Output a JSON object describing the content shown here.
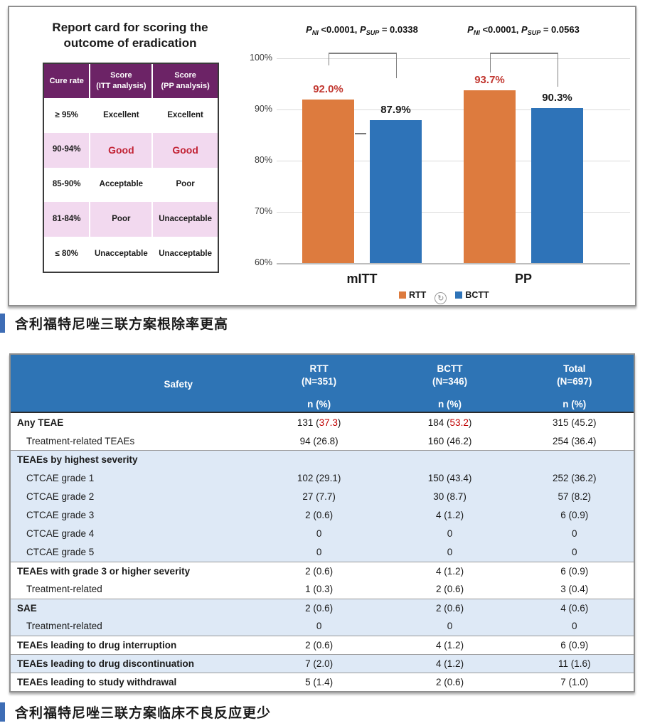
{
  "report_card": {
    "title_line1": "Report card for scoring the",
    "title_line2": "outcome of eradication",
    "header": [
      {
        "l1": "Cure rate",
        "l2": ""
      },
      {
        "l1": "Score",
        "l2": "(ITT analysis)"
      },
      {
        "l1": "Score",
        "l2": "(PP analysis)"
      }
    ],
    "rows": [
      {
        "rate": "≥ 95%",
        "itt": "Excellent",
        "pp": "Excellent",
        "shade": "white",
        "red": false
      },
      {
        "rate": "90-94%",
        "itt": "Good",
        "pp": "Good",
        "shade": "pink",
        "red": true
      },
      {
        "rate": "85-90%",
        "itt": "Acceptable",
        "pp": "Poor",
        "shade": "white",
        "red": false
      },
      {
        "rate": "81-84%",
        "itt": "Poor",
        "pp": "Unacceptable",
        "shade": "pink",
        "red": false
      },
      {
        "rate": "≤ 80%",
        "itt": "Unacceptable",
        "pp": "Unacceptable",
        "shade": "white",
        "red": false
      }
    ],
    "colors": {
      "header_bg": "#6C2366",
      "pink_row": "#F2D9EF",
      "good_red": "#C22335"
    }
  },
  "chart_data": {
    "type": "bar",
    "title": "",
    "categories": [
      "mITT",
      "PP"
    ],
    "series": [
      {
        "name": "RTT",
        "color": "#DD7B3E",
        "values": [
          92.0,
          93.7
        ],
        "value_labels": [
          "92.0%",
          "93.7%"
        ],
        "label_color": "#C23831"
      },
      {
        "name": "BCTT",
        "color": "#2E73B8",
        "values": [
          87.9,
          90.3
        ],
        "value_labels": [
          "87.9%",
          "90.3%"
        ],
        "label_color": "#1a1a1a"
      }
    ],
    "ylim": [
      60,
      100
    ],
    "yticks": [
      {
        "label": "100%",
        "value": 100
      },
      {
        "label": "90%",
        "value": 90
      },
      {
        "label": "80%",
        "value": 80
      },
      {
        "label": "70%",
        "value": 70
      },
      {
        "label": "60%",
        "value": 60
      }
    ],
    "grid": true,
    "legend_position": "bottom",
    "refresh_icon_glyph": "↻",
    "annotations": [
      {
        "p": "P",
        "sub1": "NI",
        "v1": "<0.0001,",
        "sub2": "SUP",
        "v2": "= 0.0338"
      },
      {
        "p": "P",
        "sub1": "NI",
        "v1": "<0.0001,",
        "sub2": "SUP",
        "v2": "= 0.0563"
      }
    ]
  },
  "caption_top": {
    "text": "含利福特尼唑三联方案根除率更高",
    "bar_color": "#3E6DB5"
  },
  "caption_bottom": {
    "text": "含利福特尼唑三联方案临床不良反应更少",
    "bar_color": "#3E6DB5"
  },
  "safety_table": {
    "colors": {
      "header_bg": "#2E74B5",
      "zebra": "#DEE9F6",
      "highlight_red": "#C00000"
    },
    "header": {
      "title": "Safety",
      "cols": [
        {
          "name": "RTT",
          "n": "(N=351)"
        },
        {
          "name": "BCTT",
          "n": "(N=346)"
        },
        {
          "name": "Total",
          "n": "(N=697)"
        }
      ],
      "sub": "n (%)"
    },
    "rows": [
      {
        "label": "Any TEAE",
        "bold": true,
        "indent": false,
        "shade": "white",
        "section_start": false,
        "cells": [
          {
            "n": "131",
            "pct": "37.3",
            "red": true
          },
          {
            "n": "184",
            "pct": "53.2",
            "red": true
          },
          {
            "n": "315",
            "pct": "45.2"
          }
        ]
      },
      {
        "label": "Treatment-related TEAEs",
        "bold": false,
        "indent": true,
        "shade": "white",
        "section_start": false,
        "cells": [
          {
            "n": "94",
            "pct": "26.8"
          },
          {
            "n": "160",
            "pct": "46.2"
          },
          {
            "n": "254",
            "pct": "36.4"
          }
        ]
      },
      {
        "label": "TEAEs by highest severity",
        "bold": true,
        "indent": false,
        "shade": "blue",
        "section_start": true,
        "cells": [
          null,
          null,
          null
        ]
      },
      {
        "label": "CTCAE grade 1",
        "bold": false,
        "indent": true,
        "shade": "blue",
        "section_start": false,
        "cells": [
          {
            "n": "102",
            "pct": "29.1"
          },
          {
            "n": "150",
            "pct": "43.4"
          },
          {
            "n": "252",
            "pct": "36.2"
          }
        ]
      },
      {
        "label": "CTCAE grade 2",
        "bold": false,
        "indent": true,
        "shade": "blue",
        "section_start": false,
        "cells": [
          {
            "n": "27",
            "pct": "7.7"
          },
          {
            "n": "30",
            "pct": "8.7"
          },
          {
            "n": "57",
            "pct": "8.2"
          }
        ]
      },
      {
        "label": "CTCAE grade 3",
        "bold": false,
        "indent": true,
        "shade": "blue",
        "section_start": false,
        "cells": [
          {
            "n": "2",
            "pct": "0.6"
          },
          {
            "n": "4",
            "pct": "1.2"
          },
          {
            "n": "6",
            "pct": "0.9"
          }
        ]
      },
      {
        "label": "CTCAE grade 4",
        "bold": false,
        "indent": true,
        "shade": "blue",
        "section_start": false,
        "cells": [
          {
            "n": "0"
          },
          {
            "n": "0"
          },
          {
            "n": "0"
          }
        ]
      },
      {
        "label": "CTCAE grade 5",
        "bold": false,
        "indent": true,
        "shade": "blue",
        "section_start": false,
        "cells": [
          {
            "n": "0"
          },
          {
            "n": "0"
          },
          {
            "n": "0"
          }
        ]
      },
      {
        "label": "TEAEs with grade 3 or higher severity",
        "bold": true,
        "indent": false,
        "shade": "white",
        "section_start": true,
        "cells": [
          {
            "n": "2",
            "pct": "0.6"
          },
          {
            "n": "4",
            "pct": "1.2"
          },
          {
            "n": "6",
            "pct": "0.9"
          }
        ]
      },
      {
        "label": "Treatment-related",
        "bold": false,
        "indent": true,
        "shade": "white",
        "section_start": false,
        "cells": [
          {
            "n": "1",
            "pct": "0.3"
          },
          {
            "n": "2",
            "pct": "0.6"
          },
          {
            "n": "3",
            "pct": "0.4"
          }
        ]
      },
      {
        "label": "SAE",
        "bold": true,
        "indent": false,
        "shade": "blue",
        "section_start": true,
        "cells": [
          {
            "n": "2",
            "pct": "0.6"
          },
          {
            "n": "2",
            "pct": "0.6"
          },
          {
            "n": "4",
            "pct": "0.6"
          }
        ]
      },
      {
        "label": "Treatment-related",
        "bold": false,
        "indent": true,
        "shade": "blue",
        "section_start": false,
        "cells": [
          {
            "n": "0"
          },
          {
            "n": "0"
          },
          {
            "n": "0"
          }
        ]
      },
      {
        "label": "TEAEs leading to drug interruption",
        "bold": true,
        "indent": false,
        "shade": "white",
        "section_start": true,
        "cells": [
          {
            "n": "2",
            "pct": "0.6"
          },
          {
            "n": "4",
            "pct": "1.2"
          },
          {
            "n": "6",
            "pct": "0.9"
          }
        ]
      },
      {
        "label": "TEAEs leading to drug discontinuation",
        "bold": true,
        "indent": false,
        "shade": "blue",
        "section_start": true,
        "cells": [
          {
            "n": "7",
            "pct": "2.0"
          },
          {
            "n": "4",
            "pct": "1.2"
          },
          {
            "n": "11",
            "pct": "1.6"
          }
        ]
      },
      {
        "label": "TEAEs leading to study withdrawal",
        "bold": true,
        "indent": false,
        "shade": "white",
        "section_start": true,
        "cells": [
          {
            "n": "5",
            "pct": "1.4"
          },
          {
            "n": "2",
            "pct": "0.6"
          },
          {
            "n": "7",
            "pct": "1.0"
          }
        ]
      }
    ]
  }
}
